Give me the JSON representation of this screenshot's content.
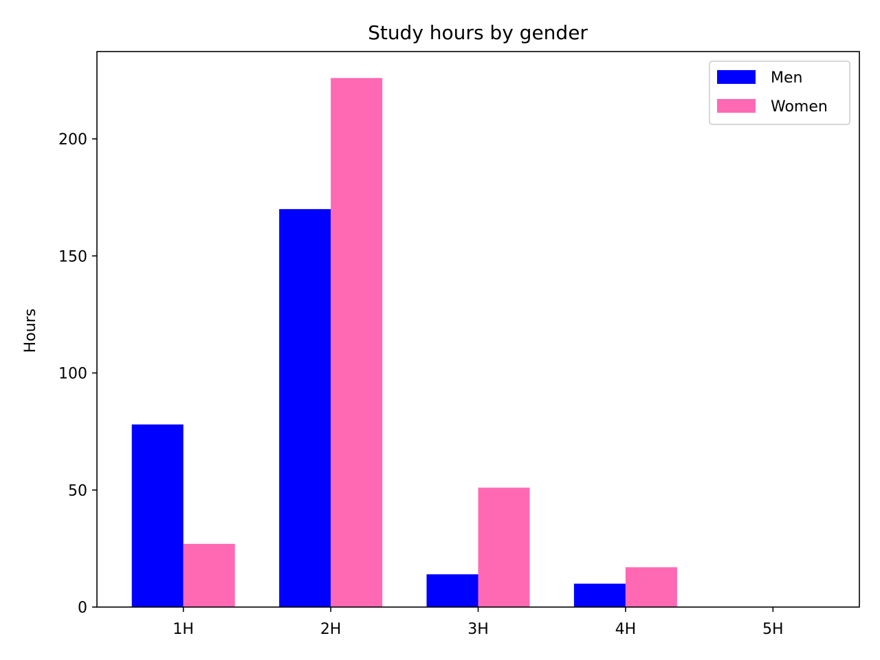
{
  "chart_data": {
    "type": "bar",
    "title": "Study hours by gender",
    "xlabel": "",
    "ylabel": "Hours",
    "categories": [
      "1H",
      "2H",
      "3H",
      "4H",
      "5H"
    ],
    "series": [
      {
        "name": "Men",
        "color": "#0000ff",
        "values": [
          78,
          170,
          14,
          10,
          0
        ]
      },
      {
        "name": "Women",
        "color": "#ff69b4",
        "values": [
          27,
          226,
          51,
          17,
          0
        ]
      }
    ],
    "ylim": [
      0,
      237.3
    ],
    "yticks": [
      0,
      50,
      100,
      150,
      200
    ],
    "grid": false,
    "legend_position": "top-right"
  }
}
